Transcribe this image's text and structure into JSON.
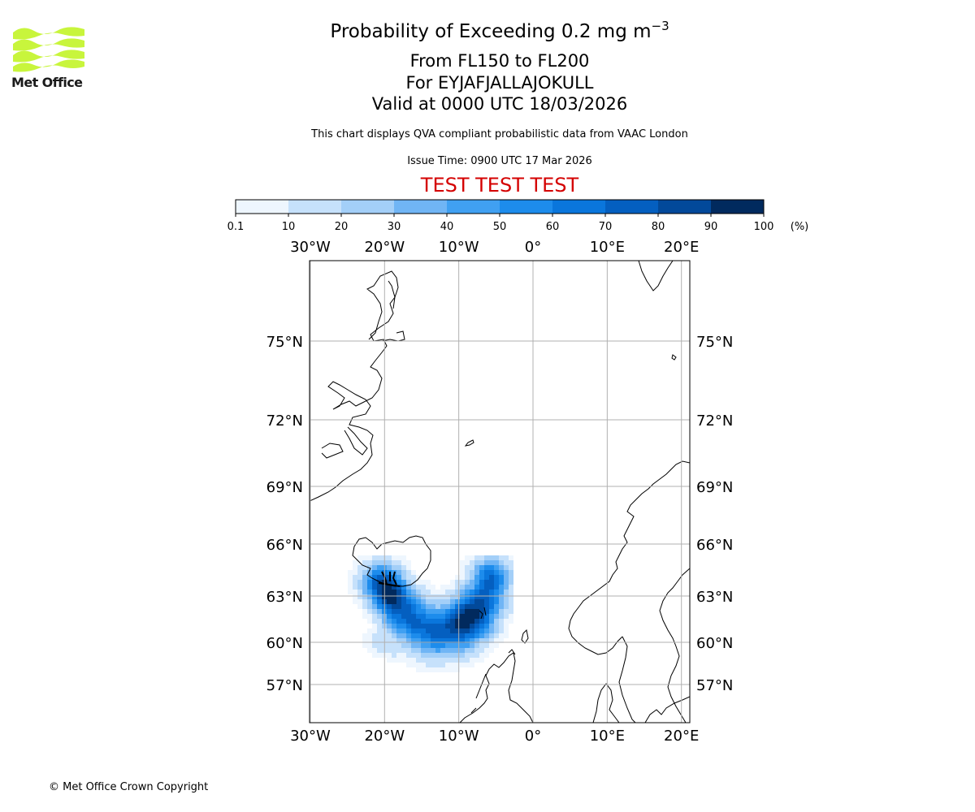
{
  "logo": {
    "text": "Met Office",
    "brand_color": "#c8f53c"
  },
  "header": {
    "title_main": "Probability of Exceeding 0.2 mg m",
    "title_exp": "−3",
    "level": "From FL150 to FL200",
    "volcano": "For EYJAFJALLAJOKULL",
    "valid": "Valid at 0000 UTC 18/03/2026",
    "note": "This chart displays QVA compliant probabilistic data from VAAC London",
    "issue": "Issue Time: 0900 UTC 17 Mar 2026",
    "test_banner": "TEST TEST TEST",
    "test_color": "#d40000"
  },
  "colorbar": {
    "ticks": [
      "0.1",
      "10",
      "20",
      "30",
      "40",
      "50",
      "60",
      "70",
      "80",
      "90",
      "100"
    ],
    "unit": "(%)",
    "colors": [
      "#eef6fe",
      "#c6e1fb",
      "#a3cff8",
      "#70b5f5",
      "#40a0f2",
      "#1d8cec",
      "#0a76dc",
      "#045fc0",
      "#02499a",
      "#012a5e"
    ]
  },
  "map": {
    "lon_labels": [
      "30°W",
      "20°W",
      "10°W",
      "0°",
      "10°E",
      "20°E"
    ],
    "lat_labels": [
      "75°N",
      "72°N",
      "69°N",
      "66°N",
      "63°N",
      "60°N",
      "57°N"
    ],
    "extent": {
      "lon_min": -30,
      "lon_max": 21.3,
      "lat_min": 55,
      "lat_max": 78
    }
  },
  "footer": {
    "copyright": "© Met Office Crown Copyright"
  }
}
